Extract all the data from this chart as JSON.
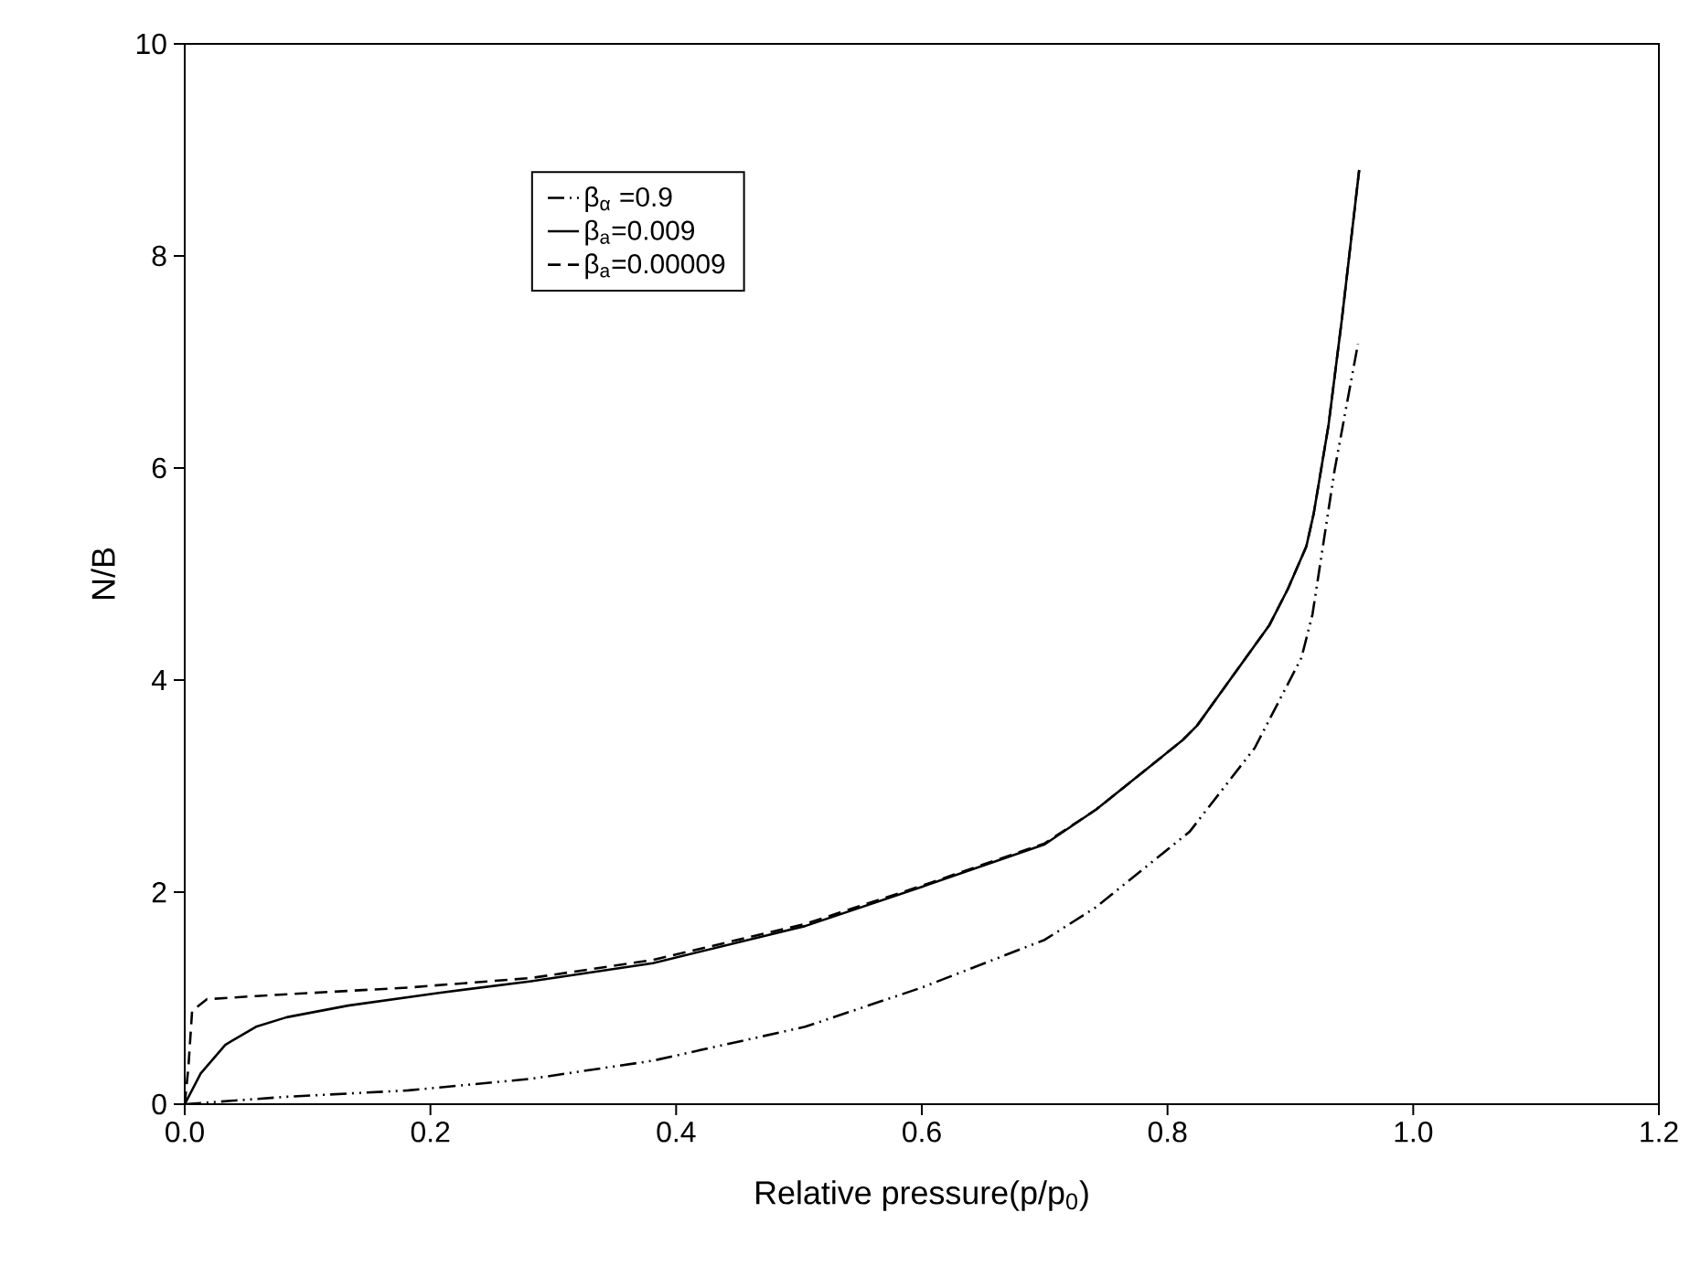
{
  "chart_data": {
    "type": "line",
    "xlabel": "Relative pressure(p/p$_{0}$)",
    "ylabel": "N/B",
    "xlim": [
      0,
      1.2
    ],
    "ylim": [
      0,
      10
    ],
    "xticks": [
      {
        "value": 0,
        "label": "0.0"
      },
      {
        "value": 0.2,
        "label": "0.2"
      },
      {
        "value": 0.4,
        "label": "0.4"
      },
      {
        "value": 0.6,
        "label": "0.6"
      },
      {
        "value": 0.8,
        "label": "0.8"
      },
      {
        "value": 1.0,
        "label": "1.0"
      },
      {
        "value": 1.2,
        "label": "1.2"
      }
    ],
    "yticks": [
      0,
      2,
      4,
      6,
      8,
      10
    ],
    "grid": false,
    "legend": "top left",
    "marker": "none",
    "series": [
      {
        "name": "β$_{α}$ =0.9",
        "color": "#000000",
        "line_style": "dotted",
        "x": [
          0,
          0.083,
          0.182,
          0.282,
          0.381,
          0.505,
          0.6,
          0.7,
          0.742,
          0.818,
          0.871,
          0.909,
          0.918,
          0.936,
          0.955
        ],
        "values": [
          0,
          0.07,
          0.13,
          0.24,
          0.41,
          0.73,
          1.1,
          1.55,
          1.86,
          2.57,
          3.36,
          4.21,
          4.62,
          5.98,
          7.17
        ]
      },
      {
        "name": "β$_{a}$=0.009",
        "color": "#000000",
        "line_style": "solid",
        "x": [
          0,
          0.013,
          0.033,
          0.058,
          0.083,
          0.133,
          0.207,
          0.282,
          0.381,
          0.505,
          0.6,
          0.7,
          0.742,
          0.812,
          0.824,
          0.883,
          0.898,
          0.913,
          0.919,
          0.931,
          0.942,
          0.956
        ],
        "values": [
          0,
          0.29,
          0.56,
          0.73,
          0.82,
          0.93,
          1.05,
          1.16,
          1.33,
          1.68,
          2.05,
          2.45,
          2.78,
          3.43,
          3.57,
          4.52,
          4.86,
          5.26,
          5.57,
          6.4,
          7.41,
          8.81
        ]
      },
      {
        "name": "β$_{a}$=0.00009",
        "color": "#000000",
        "line_style": "dashed",
        "x": [
          0,
          0.003,
          0.006,
          0.018,
          0.058,
          0.182,
          0.282,
          0.381,
          0.505,
          0.6,
          0.7,
          0.742,
          0.812,
          0.824,
          0.883,
          0.898,
          0.913,
          0.919,
          0.931,
          0.942,
          0.956
        ],
        "values": [
          0,
          0.35,
          0.88,
          0.99,
          1.02,
          1.1,
          1.19,
          1.36,
          1.7,
          2.06,
          2.46,
          2.78,
          3.43,
          3.57,
          4.52,
          4.86,
          5.26,
          5.57,
          6.4,
          7.41,
          8.81
        ]
      }
    ]
  }
}
